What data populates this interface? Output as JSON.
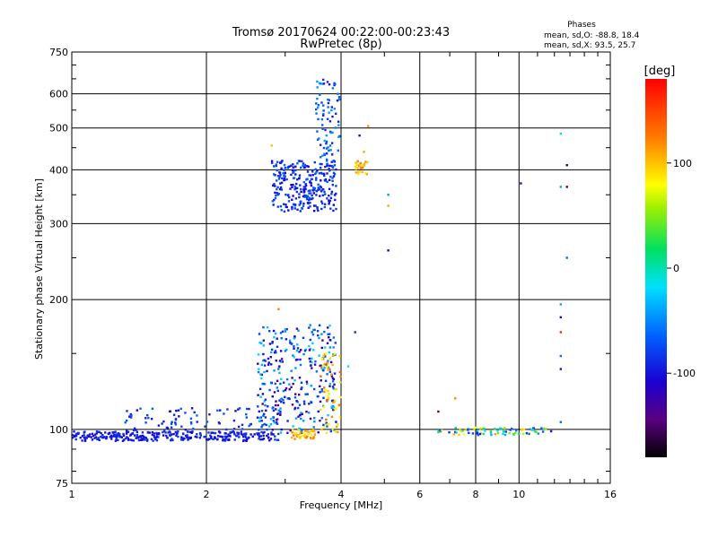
{
  "chart_data": {
    "type": "scatter",
    "title": "Tromsø 20170624 00:22:00-00:23:43",
    "subtitle": "RwPretec (8p)",
    "xlabel": "Frequency [MHz]",
    "ylabel": "Stationary phase Virtual Height [km]",
    "x_scale": "log",
    "y_scale": "log",
    "xlim": [
      1,
      16
    ],
    "ylim": [
      75,
      750
    ],
    "x_ticks": [
      1,
      2,
      4,
      6,
      8,
      10,
      16
    ],
    "x_tick_labels": [
      "1",
      "2",
      "4",
      "6",
      "8",
      "10",
      "16"
    ],
    "y_ticks": [
      75,
      100,
      200,
      300,
      400,
      500,
      600,
      750
    ],
    "y_tick_labels": [
      "75",
      "100",
      "200",
      "300",
      "400",
      "500",
      "600",
      "750"
    ],
    "grid": true,
    "stats": {
      "heading": "Phases",
      "line_o": "mean, sd,O: -88.8, 18.4",
      "line_x": "mean, sd,X:  93.5, 25.7"
    },
    "colorbar": {
      "label": "[deg]",
      "range": [
        -180,
        180
      ],
      "ticks": [
        100,
        0,
        -100
      ],
      "tick_labels": [
        "100",
        "0",
        "-100"
      ]
    },
    "groups": [
      {
        "x_range": [
          1.0,
          2.9
        ],
        "y_range": [
          94,
          99
        ],
        "phase_range": [
          -110,
          -80
        ],
        "count": 300
      },
      {
        "x_range": [
          1.3,
          3.0
        ],
        "y_range": [
          99,
          112
        ],
        "phase_range": [
          -110,
          -60
        ],
        "count": 90
      },
      {
        "x_range": [
          2.6,
          3.9
        ],
        "y_range": [
          98,
          175
        ],
        "phase_range": [
          -140,
          -20
        ],
        "count": 320
      },
      {
        "x_range": [
          3.1,
          3.5
        ],
        "y_range": [
          95,
          100
        ],
        "phase_range": [
          80,
          130
        ],
        "count": 40
      },
      {
        "x_range": [
          3.6,
          4.0
        ],
        "y_range": [
          98,
          150
        ],
        "phase_range": [
          60,
          140
        ],
        "count": 60
      },
      {
        "x_range": [
          2.8,
          3.9
        ],
        "y_range": [
          320,
          420
        ],
        "phase_range": [
          -110,
          -60
        ],
        "count": 280
      },
      {
        "x_range": [
          3.5,
          3.98
        ],
        "y_range": [
          420,
          650
        ],
        "phase_range": [
          -100,
          -40
        ],
        "count": 80
      },
      {
        "x_range": [
          4.3,
          4.6
        ],
        "y_range": [
          390,
          420
        ],
        "phase_range": [
          80,
          130
        ],
        "count": 25
      },
      {
        "x_range": [
          6.5,
          11.5
        ],
        "y_range": [
          97,
          101
        ],
        "phase_range": [
          -110,
          120
        ],
        "count": 80
      }
    ],
    "points": [
      {
        "x": 2.8,
        "y": 455,
        "phase": 100
      },
      {
        "x": 4.6,
        "y": 505,
        "phase": 115
      },
      {
        "x": 4.4,
        "y": 480,
        "phase": -120
      },
      {
        "x": 4.5,
        "y": 440,
        "phase": 110
      },
      {
        "x": 5.1,
        "y": 350,
        "phase": -40
      },
      {
        "x": 5.1,
        "y": 330,
        "phase": 110
      },
      {
        "x": 5.1,
        "y": 260,
        "phase": -110
      },
      {
        "x": 4.3,
        "y": 168,
        "phase": -90
      },
      {
        "x": 4.15,
        "y": 140,
        "phase": -20
      },
      {
        "x": 2.9,
        "y": 190,
        "phase": 120
      },
      {
        "x": 6.6,
        "y": 110,
        "phase": -150
      },
      {
        "x": 7.2,
        "y": 118,
        "phase": 120
      },
      {
        "x": 10.1,
        "y": 372,
        "phase": -100
      },
      {
        "x": 12.4,
        "y": 485,
        "phase": -20
      },
      {
        "x": 12.4,
        "y": 365,
        "phase": -40
      },
      {
        "x": 12.8,
        "y": 365,
        "phase": -150
      },
      {
        "x": 12.8,
        "y": 410,
        "phase": -160
      },
      {
        "x": 12.8,
        "y": 250,
        "phase": -60
      },
      {
        "x": 12.4,
        "y": 195,
        "phase": -40
      },
      {
        "x": 12.4,
        "y": 182,
        "phase": -100
      },
      {
        "x": 12.4,
        "y": 168,
        "phase": 160
      },
      {
        "x": 12.4,
        "y": 148,
        "phase": -60
      },
      {
        "x": 12.4,
        "y": 138,
        "phase": -100
      },
      {
        "x": 12.4,
        "y": 104,
        "phase": -60
      },
      {
        "x": 11.8,
        "y": 99,
        "phase": -100
      }
    ]
  }
}
